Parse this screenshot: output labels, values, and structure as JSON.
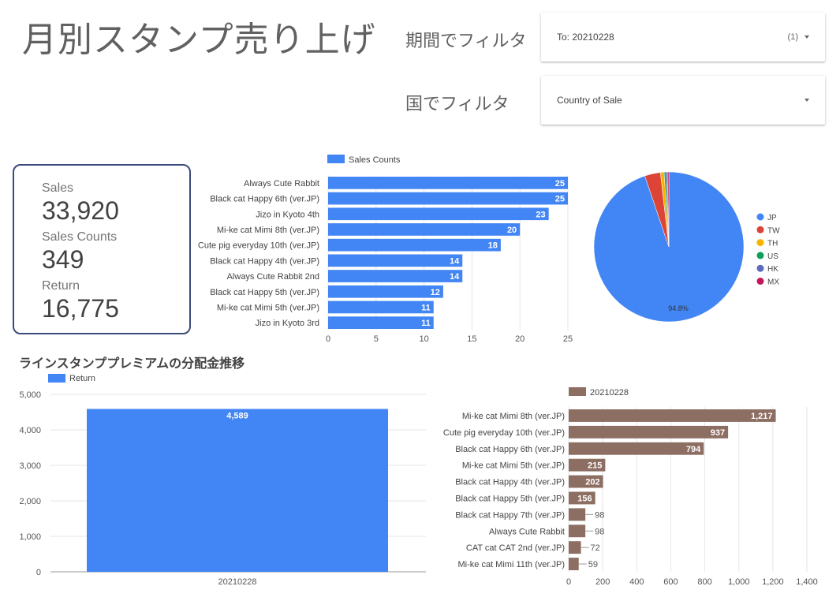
{
  "header": {
    "title": "月別スタンプ売り上げ"
  },
  "filters": {
    "period": {
      "label": "期間でフィルタ",
      "value": "To: 20210228",
      "count": "(1)"
    },
    "country": {
      "label": "国でフィルタ",
      "value": "Country of Sale"
    }
  },
  "scorecard": [
    {
      "label": "Sales",
      "value": "33,920"
    },
    {
      "label": "Sales Counts",
      "value": "349"
    },
    {
      "label": "Return",
      "value": "16,775"
    }
  ],
  "section": {
    "heading": "ラインスタンププレミアムの分配金推移"
  },
  "colors": {
    "blue": "#4285f4",
    "brown": "#8d6e63",
    "red": "#db4437",
    "yellow": "#f4b400",
    "green": "#0f9d58",
    "indigo": "#5c6bc0",
    "crimson": "#c2185b",
    "border": "#3c4a7a"
  },
  "chart_data": [
    {
      "id": "sales-counts",
      "type": "bar",
      "orientation": "horizontal",
      "categories": [
        "Always Cute Rabbit",
        "Black cat Happy 6th (ver.JP)",
        "Jizo in Kyoto 4th",
        "Mi-ke cat Mimi 8th (ver.JP)",
        "Cute pig everyday 10th (ver.JP)",
        "Black cat Happy 4th (ver.JP)",
        "Always Cute Rabbit 2nd",
        "Black cat Happy 5th (ver.JP)",
        "Mi-ke cat Mimi 5th (ver.JP)",
        "Jizo in Kyoto 3rd"
      ],
      "series": [
        {
          "name": "Sales Counts",
          "values": [
            25,
            25,
            23,
            20,
            18,
            14,
            14,
            12,
            11,
            11
          ]
        }
      ],
      "xlim": [
        0,
        25
      ],
      "xticks": [
        0,
        5,
        10,
        15,
        20,
        25
      ],
      "grid": true,
      "legend": "top"
    },
    {
      "id": "country-pie",
      "type": "pie",
      "labels": [
        "JP",
        "TW",
        "TH",
        "US",
        "HK",
        "MX"
      ],
      "values": [
        94.8,
        3.4,
        0.8,
        0.4,
        0.3,
        0.3
      ],
      "slice_label": "94.8%",
      "legend": "right"
    },
    {
      "id": "return-trend",
      "type": "bar",
      "orientation": "vertical",
      "categories": [
        "20210228"
      ],
      "series": [
        {
          "name": "Return",
          "values": [
            4589
          ]
        }
      ],
      "data_labels": [
        "4,589"
      ],
      "ylim": [
        0,
        5000
      ],
      "yticks": [
        0,
        1000,
        2000,
        3000,
        4000,
        5000
      ],
      "ytick_labels": [
        "0",
        "1,000",
        "2,000",
        "3,000",
        "4,000",
        "5,000"
      ],
      "grid": true,
      "legend": "top-left"
    },
    {
      "id": "return-by-stamp",
      "type": "bar",
      "orientation": "horizontal",
      "categories": [
        "Mi-ke cat Mimi 8th (ver.JP)",
        "Cute pig everyday 10th (ver.JP)",
        "Black cat Happy 6th (ver.JP)",
        "Mi-ke cat Mimi 5th (ver.JP)",
        "Black cat Happy 4th (ver.JP)",
        "Black cat Happy 5th (ver.JP)",
        "Black cat Happy 7th (ver.JP)",
        "Always Cute Rabbit",
        "CAT cat CAT 2nd (ver.JP)",
        "Mi-ke cat Mimi 11th (ver.JP)"
      ],
      "series": [
        {
          "name": "20210228",
          "values": [
            1217,
            937,
            794,
            215,
            202,
            156,
            98,
            98,
            72,
            59
          ]
        }
      ],
      "data_labels": [
        "1,217",
        "937",
        "794",
        "215",
        "202",
        "156",
        "98",
        "98",
        "72",
        "59"
      ],
      "xlim": [
        0,
        1400
      ],
      "xticks": [
        0,
        200,
        400,
        600,
        800,
        1000,
        1200,
        1400
      ],
      "xtick_labels": [
        "0",
        "200",
        "400",
        "600",
        "800",
        "1,000",
        "1,200",
        "1,400"
      ],
      "grid": true,
      "legend": "top"
    }
  ]
}
